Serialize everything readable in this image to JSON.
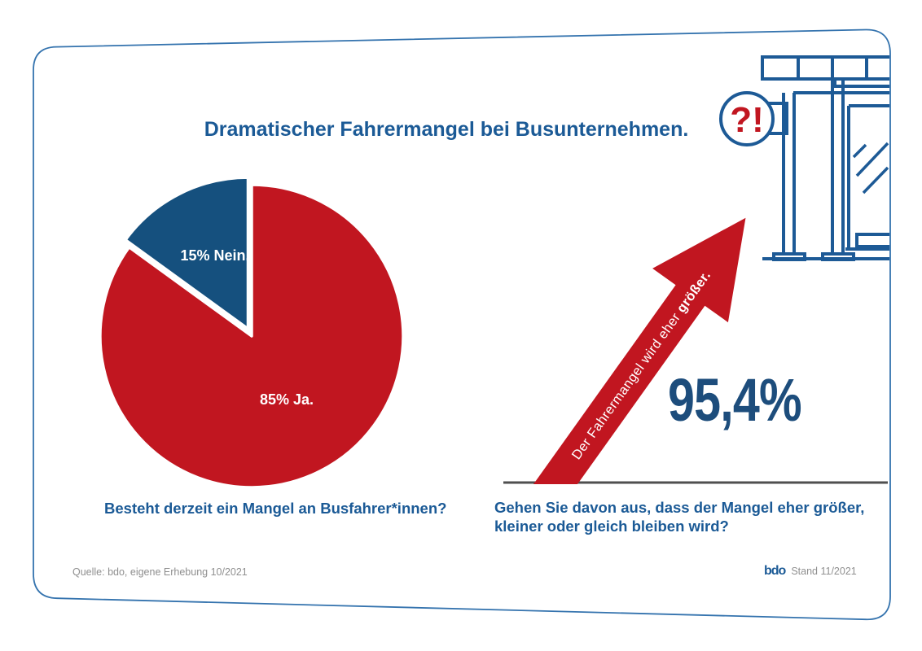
{
  "title": "Dramatischer Fahrermangel bei Busunternehmen.",
  "chart_data": [
    {
      "type": "pie",
      "question": "Besteht derzeit ein Mangel an Busfahrer*innen?",
      "labels": [
        "Ja",
        "Nein"
      ],
      "values": [
        85,
        15
      ],
      "slice_labels": [
        "85% Ja.",
        "15% Nein."
      ],
      "colors": [
        "#c11620",
        "#15507e"
      ],
      "exploded_label": "Nein",
      "start_angle_deg": 0,
      "direction": "clockwise",
      "label_color": "#ffffff"
    },
    {
      "type": "single-value",
      "value": "95,4%",
      "annotation": "Der Fahrermangel wird eher größer.",
      "question": "Gehen Sie davon aus, dass der Mangel eher größer, kleiner oder gleich bleiben wird?"
    }
  ],
  "left_panel": {
    "question": "Besteht derzeit ein Mangel an Busfahrer*innen?"
  },
  "right_panel": {
    "arrow_text_regular": "Der Fahrermangel wird eher ",
    "arrow_text_bold": "größer.",
    "value": "95,4%",
    "question_line1": "Gehen Sie davon aus, dass der Mangel eher größer,",
    "question_line2": "kleiner oder gleich bleiben wird?"
  },
  "illustration": {
    "sign_text": "?!"
  },
  "footer": {
    "source": "Quelle: bdo, eigene Erhebung 10/2021",
    "logo_text": "bdo",
    "stand": "Stand 11/2021"
  },
  "colors": {
    "red": "#c11620",
    "pie_blue": "#15507e",
    "text_blue": "#1b5a96",
    "value_blue": "#1d4d7c",
    "border_blue": "#3473ae",
    "baseline_gray": "#4f4f4f",
    "footer_gray": "#8f8f8f",
    "illustration_blue": "#1d5a96"
  }
}
